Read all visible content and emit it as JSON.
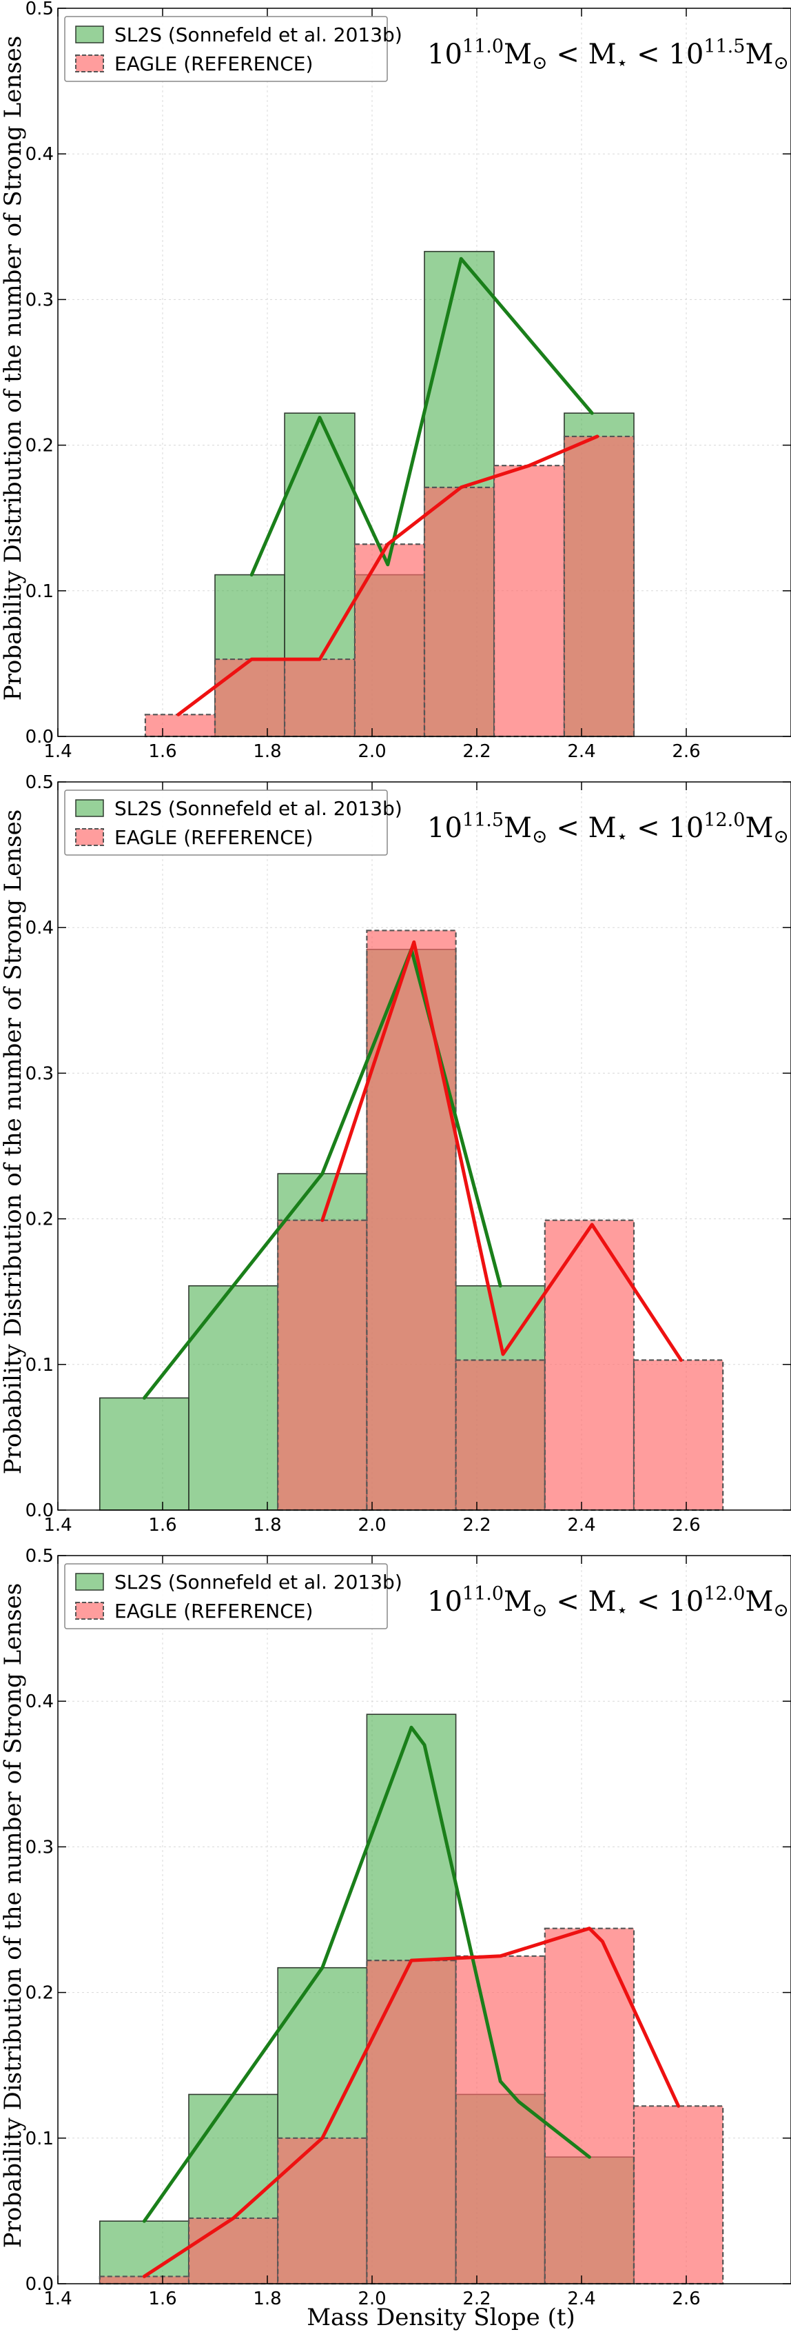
{
  "figure": {
    "xlabel": "Mass Density Slope (t)",
    "ylabel": "Probability Distribution of the number of Strong Lenses"
  },
  "colors": {
    "sl2s_fill": "#4caf50",
    "sl2s_line": "#1a7f1a",
    "eagle_fill": "#ff6b6b",
    "eagle_line": "#ee1111",
    "grid": "#d8d8d8"
  },
  "chart_data": [
    {
      "type": "bar",
      "panel": "top",
      "mass_range": {
        "lo": "10",
        "lo_exp": "11.0",
        "mid": "M",
        "hi": "10",
        "hi_exp": "11.5"
      },
      "xlim": [
        1.4,
        2.8
      ],
      "ylim": [
        0,
        0.5
      ],
      "xticks": [
        "1.4",
        "1.6",
        "1.8",
        "2.0",
        "2.2",
        "2.4",
        "2.6"
      ],
      "yticks": [
        "0.0",
        "0.1",
        "0.2",
        "0.3",
        "0.4",
        "0.5"
      ],
      "grid": true,
      "legend_position": "top-left",
      "series": [
        {
          "name": "SL2S (Sonnefeld et al. 2013b)",
          "style": "histogram-solid-edge",
          "bins": [
            {
              "x0": 1.7,
              "x1": 1.833,
              "y": 0.111
            },
            {
              "x0": 1.833,
              "x1": 1.967,
              "y": 0.222
            },
            {
              "x0": 1.967,
              "x1": 2.1,
              "y": 0.111
            },
            {
              "x0": 2.1,
              "x1": 2.233,
              "y": 0.333
            },
            {
              "x0": 2.367,
              "x1": 2.5,
              "y": 0.222
            }
          ],
          "line": [
            [
              1.77,
              0.111
            ],
            [
              1.9,
              0.219
            ],
            [
              2.03,
              0.118
            ],
            [
              2.17,
              0.328
            ],
            [
              2.42,
              0.222
            ]
          ]
        },
        {
          "name": "EAGLE (REFERENCE)",
          "style": "histogram-dashed-edge",
          "bins": [
            {
              "x0": 1.567,
              "x1": 1.7,
              "y": 0.015
            },
            {
              "x0": 1.7,
              "x1": 1.833,
              "y": 0.053
            },
            {
              "x0": 1.833,
              "x1": 1.967,
              "y": 0.053
            },
            {
              "x0": 1.967,
              "x1": 2.1,
              "y": 0.132
            },
            {
              "x0": 2.1,
              "x1": 2.233,
              "y": 0.171
            },
            {
              "x0": 2.233,
              "x1": 2.367,
              "y": 0.186
            },
            {
              "x0": 2.367,
              "x1": 2.5,
              "y": 0.206
            }
          ],
          "line": [
            [
              1.63,
              0.015
            ],
            [
              1.77,
              0.053
            ],
            [
              1.9,
              0.053
            ],
            [
              2.03,
              0.132
            ],
            [
              2.17,
              0.171
            ],
            [
              2.3,
              0.186
            ],
            [
              2.43,
              0.206
            ]
          ]
        }
      ]
    },
    {
      "type": "bar",
      "panel": "middle",
      "mass_range": {
        "lo": "10",
        "lo_exp": "11.5",
        "mid": "M",
        "hi": "10",
        "hi_exp": "12.0"
      },
      "xlim": [
        1.4,
        2.8
      ],
      "ylim": [
        0,
        0.5
      ],
      "xticks": [
        "1.4",
        "1.6",
        "1.8",
        "2.0",
        "2.2",
        "2.4",
        "2.6"
      ],
      "yticks": [
        "0.0",
        "0.1",
        "0.2",
        "0.3",
        "0.4",
        "0.5"
      ],
      "grid": true,
      "legend_position": "top-left",
      "series": [
        {
          "name": "SL2S (Sonnefeld et al. 2013b)",
          "style": "histogram-solid-edge",
          "bins": [
            {
              "x0": 1.48,
              "x1": 1.65,
              "y": 0.077
            },
            {
              "x0": 1.65,
              "x1": 1.82,
              "y": 0.154
            },
            {
              "x0": 1.82,
              "x1": 1.99,
              "y": 0.231
            },
            {
              "x0": 1.99,
              "x1": 2.16,
              "y": 0.385
            },
            {
              "x0": 2.16,
              "x1": 2.33,
              "y": 0.154
            }
          ],
          "line": [
            [
              1.565,
              0.077
            ],
            [
              1.905,
              0.231
            ],
            [
              2.075,
              0.385
            ],
            [
              2.245,
              0.154
            ]
          ]
        },
        {
          "name": "EAGLE (REFERENCE)",
          "style": "histogram-dashed-edge",
          "bins": [
            {
              "x0": 1.82,
              "x1": 1.99,
              "y": 0.199
            },
            {
              "x0": 1.99,
              "x1": 2.16,
              "y": 0.398
            },
            {
              "x0": 2.16,
              "x1": 2.33,
              "y": 0.103
            },
            {
              "x0": 2.33,
              "x1": 2.5,
              "y": 0.199
            },
            {
              "x0": 2.5,
              "x1": 2.67,
              "y": 0.103
            }
          ],
          "line": [
            [
              1.905,
              0.199
            ],
            [
              2.08,
              0.39
            ],
            [
              2.25,
              0.107
            ],
            [
              2.42,
              0.196
            ],
            [
              2.59,
              0.103
            ]
          ]
        }
      ]
    },
    {
      "type": "bar",
      "panel": "bottom",
      "mass_range": {
        "lo": "10",
        "lo_exp": "11.0",
        "mid": "M",
        "hi": "10",
        "hi_exp": "12.0"
      },
      "xlim": [
        1.4,
        2.8
      ],
      "ylim": [
        0,
        0.5
      ],
      "xticks": [
        "1.4",
        "1.6",
        "1.8",
        "2.0",
        "2.2",
        "2.4",
        "2.6"
      ],
      "yticks": [
        "0.0",
        "0.1",
        "0.2",
        "0.3",
        "0.4",
        "0.5"
      ],
      "grid": true,
      "legend_position": "top-left",
      "series": [
        {
          "name": "SL2S (Sonnefeld et al. 2013b)",
          "style": "histogram-solid-edge",
          "bins": [
            {
              "x0": 1.48,
              "x1": 1.65,
              "y": 0.043
            },
            {
              "x0": 1.65,
              "x1": 1.82,
              "y": 0.13
            },
            {
              "x0": 1.82,
              "x1": 1.99,
              "y": 0.217
            },
            {
              "x0": 1.99,
              "x1": 2.16,
              "y": 0.391
            },
            {
              "x0": 2.16,
              "x1": 2.33,
              "y": 0.13
            },
            {
              "x0": 2.33,
              "x1": 2.5,
              "y": 0.087
            }
          ],
          "line": [
            [
              1.565,
              0.043
            ],
            [
              1.735,
              0.13
            ],
            [
              1.905,
              0.217
            ],
            [
              2.075,
              0.382
            ],
            [
              2.1,
              0.37
            ],
            [
              2.245,
              0.139
            ],
            [
              2.28,
              0.125
            ],
            [
              2.415,
              0.087
            ]
          ]
        },
        {
          "name": "EAGLE (REFERENCE)",
          "style": "histogram-dashed-edge",
          "bins": [
            {
              "x0": 1.48,
              "x1": 1.65,
              "y": 0.005
            },
            {
              "x0": 1.65,
              "x1": 1.82,
              "y": 0.045
            },
            {
              "x0": 1.82,
              "x1": 1.99,
              "y": 0.1
            },
            {
              "x0": 1.99,
              "x1": 2.16,
              "y": 0.222
            },
            {
              "x0": 2.16,
              "x1": 2.33,
              "y": 0.225
            },
            {
              "x0": 2.33,
              "x1": 2.5,
              "y": 0.244
            },
            {
              "x0": 2.5,
              "x1": 2.67,
              "y": 0.122
            }
          ],
          "line": [
            [
              1.565,
              0.005
            ],
            [
              1.735,
              0.045
            ],
            [
              1.905,
              0.1
            ],
            [
              2.075,
              0.222
            ],
            [
              2.245,
              0.225
            ],
            [
              2.415,
              0.244
            ],
            [
              2.44,
              0.235
            ],
            [
              2.585,
              0.122
            ]
          ]
        }
      ]
    }
  ]
}
